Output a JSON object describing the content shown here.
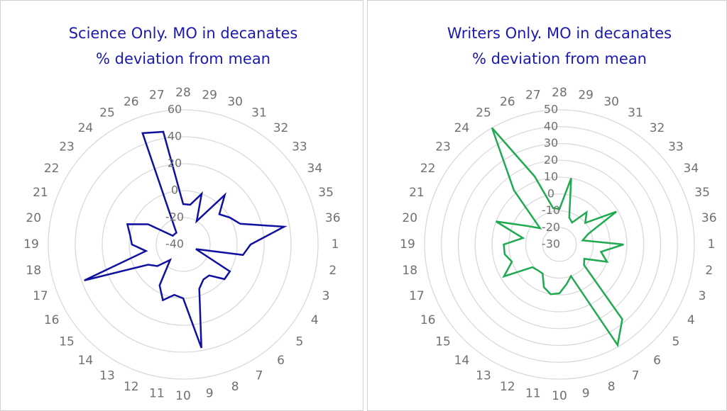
{
  "chart_data": [
    {
      "type": "radar",
      "title": "Science Only. MO in decanates",
      "subtitle": "% deviation from mean",
      "color": "#1010a0",
      "categories": [
        "28",
        "29",
        "30",
        "31",
        "32",
        "33",
        "34",
        "35",
        "36",
        "1",
        "2",
        "3",
        "4",
        "5",
        "6",
        "7",
        "8",
        "9",
        "10",
        "11",
        "12",
        "13",
        "14",
        "15",
        "16",
        "17",
        "18",
        "19",
        "20",
        "21",
        "22",
        "23",
        "24",
        "25",
        "26",
        "27"
      ],
      "values": [
        -10,
        -10,
        0,
        -20,
        8,
        -5,
        0,
        5,
        36,
        10,
        5,
        -30,
        0,
        0,
        -10,
        -10,
        -5,
        38,
        0,
        -2,
        4,
        -5,
        -25,
        -15,
        -10,
        38,
        -12,
        -2,
        0,
        4,
        -10,
        -30,
        -30,
        -30,
        48,
        45
      ],
      "ylim": [
        -40,
        60
      ],
      "yticks": [
        -40,
        -20,
        0,
        20,
        40,
        60
      ],
      "grid": true
    },
    {
      "type": "radar",
      "title": "Writers Only. MO in decanates",
      "subtitle": "% deviation from mean",
      "color": "#1faa50",
      "categories": [
        "28",
        "29",
        "30",
        "31",
        "32",
        "33",
        "34",
        "35",
        "36",
        "1",
        "2",
        "3",
        "4",
        "5",
        "6",
        "7",
        "8",
        "9",
        "10",
        "11",
        "12",
        "13",
        "14",
        "15",
        "16",
        "17",
        "18",
        "19",
        "20",
        "21",
        "22",
        "23",
        "24",
        "25",
        "26",
        "27"
      ],
      "values": [
        -9,
        10,
        -13,
        -15,
        -5,
        -10,
        9,
        -12,
        -16,
        8,
        -5,
        0,
        -13,
        -11,
        28,
        39,
        -10,
        -6,
        -1,
        0,
        -3,
        -10,
        -10,
        -9,
        8,
        0,
        3,
        3,
        -8,
        10,
        -8,
        -15,
        12,
        50,
        13,
        -8
      ],
      "ylim": [
        -30,
        50
      ],
      "yticks": [
        -30,
        -20,
        -10,
        0,
        10,
        20,
        30,
        40,
        50
      ],
      "grid": true
    }
  ]
}
